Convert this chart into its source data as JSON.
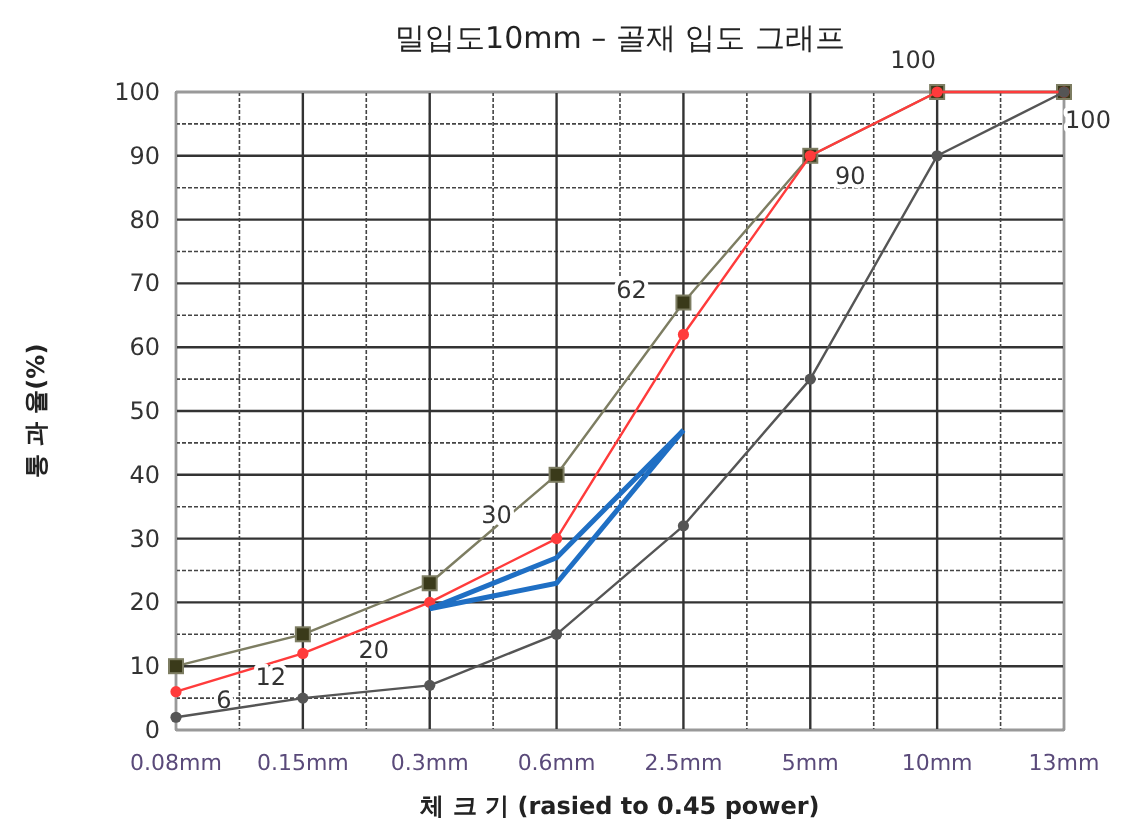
{
  "chart_data": {
    "type": "line",
    "title": "밀입도10mm – 골재 입도 그래프",
    "xlabel": "체 크 기 (rasied to 0.45 power)",
    "ylabel": "통 과 율(%)",
    "categories": [
      "0.08mm",
      "0.15mm",
      "0.3mm",
      "0.6mm",
      "2.5mm",
      "5mm",
      "10mm",
      "13mm"
    ],
    "ylim": [
      0,
      100
    ],
    "yticks": [
      0,
      10,
      20,
      30,
      40,
      50,
      60,
      70,
      80,
      90,
      100
    ],
    "grid": true,
    "series": [
      {
        "color": "#7d7d62",
        "marker": "square",
        "values": [
          10,
          15,
          23,
          40,
          67,
          90,
          100,
          100
        ]
      },
      {
        "color": "#ff3b3b",
        "marker": "circle",
        "values": [
          6,
          12,
          20,
          30,
          62,
          90,
          100,
          100
        ],
        "value_labels": [
          "6",
          "12",
          "20",
          "30",
          "62",
          "90",
          "100",
          "100"
        ]
      },
      {
        "color": "#555555",
        "marker": "circle",
        "values": [
          2,
          5,
          7,
          15,
          32,
          55,
          90,
          100
        ]
      },
      {
        "color": "#1f6fc4",
        "marker": "none",
        "values": [
          null,
          null,
          19,
          27,
          47,
          null,
          null,
          null
        ]
      },
      {
        "color": "#1f6fc4",
        "marker": "none",
        "values": [
          null,
          null,
          19,
          23,
          47,
          null,
          null,
          null
        ]
      }
    ]
  }
}
